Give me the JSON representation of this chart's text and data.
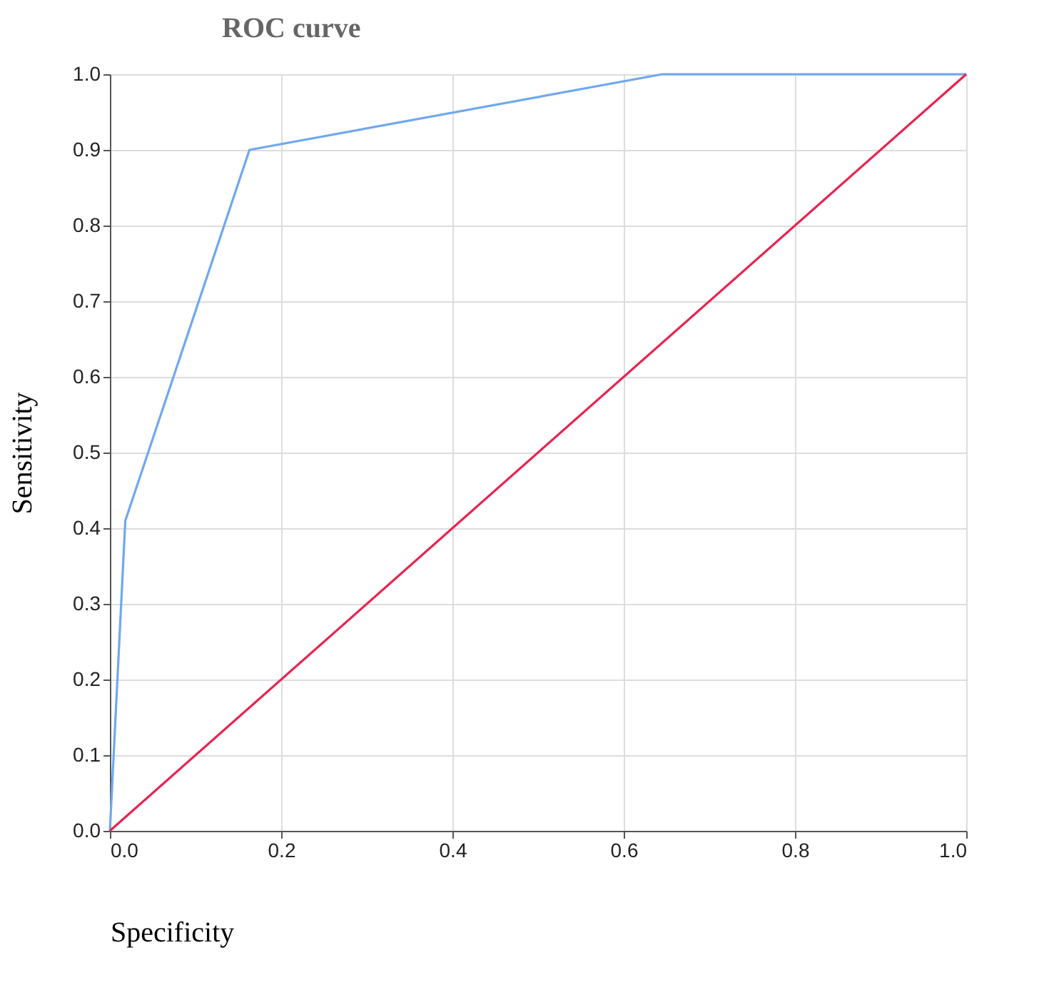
{
  "chart_data": {
    "type": "line",
    "title": "ROC curve",
    "xlabel": "Specificity",
    "ylabel": "Sensitivity",
    "series": [
      {
        "x": [
          0,
          0.018,
          0.163,
          0.645,
          1.0
        ],
        "values": [
          0,
          0.41,
          0.9,
          1.0,
          1.0
        ],
        "color": "#6fa8ee"
      },
      {
        "x": [
          0,
          1.0
        ],
        "values": [
          0,
          1.0
        ],
        "color": "#e8234f"
      }
    ],
    "xlim": [
      0,
      1.0
    ],
    "ylim": [
      0,
      1.0
    ],
    "xticks": [
      {
        "value": 0,
        "label": "0.0"
      },
      0.2,
      0.4,
      0.6,
      0.8,
      {
        "value": 1.0,
        "label": "1.0"
      }
    ],
    "yticks": [
      {
        "value": 0,
        "label": "0.0"
      },
      0.1,
      0.2,
      0.3,
      0.4,
      0.5,
      0.6,
      0.7,
      0.8,
      0.9,
      {
        "value": 1.0,
        "label": "1.0"
      }
    ],
    "grid": true,
    "legend": false,
    "marker": "none",
    "line_style": "solid"
  }
}
